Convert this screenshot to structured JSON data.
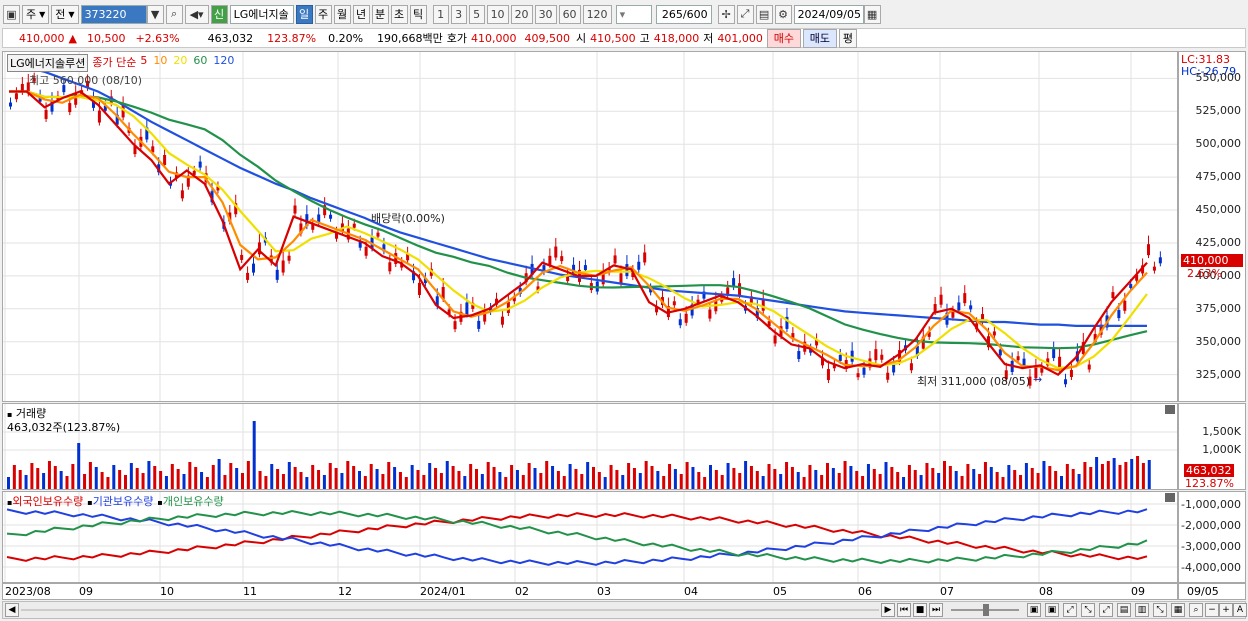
{
  "toolbar": {
    "period_type": "주",
    "prev_label": "전",
    "code": "373220",
    "badge": "신",
    "stock_name": "LG에너지솔",
    "periods": [
      "일",
      "주",
      "월",
      "년",
      "분",
      "초",
      "틱"
    ],
    "active_period": "일",
    "intervals": [
      "1",
      "3",
      "5",
      "10",
      "20",
      "30",
      "60",
      "120"
    ],
    "count": "265",
    "count_max": "/600",
    "date": "2024/09/05"
  },
  "quote": {
    "price": "410,000",
    "change_arrow": "▲",
    "change": "10,500",
    "change_pct": "+2.63%",
    "volume": "463,032",
    "volume_ratio": "123.87%",
    "turnover_pct": "0.20%",
    "amount": "190,668백만",
    "ask_label": "호가",
    "ask1": "410,000",
    "ask2": "409,500",
    "open_label": "시",
    "open": "410,500",
    "high_label": "고",
    "high": "418,000",
    "low_label": "저",
    "low": "401,000",
    "buy_label": "매수",
    "sell_label": "매도",
    "eval_label": "평"
  },
  "price_panel": {
    "title": "LG에너지솔루션",
    "ma_label": "종가 단순",
    "ma_periods": [
      "5",
      "10",
      "20",
      "60",
      "120"
    ],
    "ma_colors": [
      "#d80000",
      "#ff8c00",
      "#f0e000",
      "#22924a",
      "#2050e0"
    ],
    "high_note": "최고 560,000 (08/10)",
    "low_note": "최저 311,000 (08/05)",
    "dividend_note": "배당락(0.00%)",
    "lc": "LC:31.83",
    "hc": "HC:-26.79",
    "y_ticks": [
      "550,000",
      "525,000",
      "500,000",
      "475,000",
      "450,000",
      "425,000",
      "400,000",
      "375,000",
      "350,000",
      "325,000"
    ],
    "current_tag": "410,000",
    "current_pct": "2.63%"
  },
  "volume_panel": {
    "title": "거래량",
    "value": "463,032주(123.87%)",
    "y_ticks": [
      "1,500K",
      "1,000K"
    ],
    "current_tag": "463,032",
    "current_pct": "123.87%"
  },
  "holding_panel": {
    "legend": [
      "외국인보유수량",
      "기관보유수량",
      "개인보유수량"
    ],
    "colors": [
      "#d80000",
      "#2040e0",
      "#22924a"
    ],
    "y_ticks": [
      "-1,000,000",
      "-2,000,000",
      "-3,000,000",
      "-4,000,000"
    ]
  },
  "x_axis": {
    "labels": [
      "2023/08",
      "09",
      "10",
      "11",
      "12",
      "2024/01",
      "02",
      "03",
      "04",
      "05",
      "06",
      "07",
      "08",
      "09"
    ],
    "end_label": "09/05"
  },
  "chart_data": {
    "type": "line",
    "title": "LG에너지솔루션",
    "ylim": [
      305000,
      570000
    ],
    "series": [
      {
        "name": "5",
        "values": [
          540000,
          540000,
          528000,
          535000,
          540000,
          530000,
          515000,
          500000,
          488000,
          470000,
          480000,
          470000,
          442000,
          405000,
          420000,
          408000,
          445000,
          440000,
          435000,
          430000,
          425000,
          415000,
          410000,
          400000,
          378000,
          368000,
          370000,
          375000,
          385000,
          395000,
          410000,
          405000,
          400000,
          400000,
          408000,
          405000,
          380000,
          372000,
          375000,
          380000,
          385000,
          380000,
          370000,
          358000,
          348000,
          345000,
          335000,
          330000,
          333000,
          331000,
          340000,
          352000,
          372000,
          375000,
          368000,
          350000,
          333000,
          330000,
          332000,
          325000,
          338000,
          360000,
          380000,
          395000,
          410000
        ]
      },
      {
        "name": "120",
        "values": [
          560000,
          558000,
          555000,
          550000,
          545000,
          540000,
          533000,
          525000,
          517000,
          510000,
          503000,
          496000,
          489000,
          482000,
          476000,
          470000,
          465000,
          459000,
          454000,
          449000,
          444000,
          438000,
          433000,
          429000,
          425000,
          421000,
          417000,
          413000,
          410000,
          407000,
          404000,
          401000,
          399000,
          397000,
          395000,
          393000,
          391000,
          389000,
          388000,
          387000,
          386000,
          385000,
          383000,
          381000,
          379000,
          377000,
          375000,
          373000,
          372000,
          371000,
          370000,
          369000,
          368000,
          367000,
          366000,
          365000,
          365000,
          364000,
          363000,
          363000,
          362000,
          362000,
          362000,
          362000,
          362000
        ]
      }
    ]
  }
}
